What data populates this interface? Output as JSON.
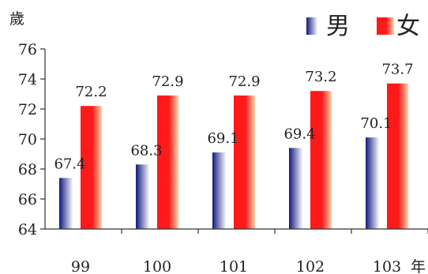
{
  "chart_data": {
    "type": "bar",
    "y_unit": "歲",
    "x_unit": "年",
    "categories": [
      "99",
      "100",
      "101",
      "102",
      "103"
    ],
    "series": [
      {
        "name": "男",
        "values": [
          67.4,
          68.3,
          69.1,
          69.4,
          70.1
        ]
      },
      {
        "name": "女",
        "values": [
          72.2,
          72.9,
          72.9,
          73.2,
          73.7
        ]
      }
    ],
    "ylim": [
      64,
      76
    ],
    "yticks": [
      64,
      66,
      68,
      70,
      72,
      74,
      76
    ],
    "grid": false,
    "legend_position": "top-right"
  },
  "colors": {
    "male_dark": "#101a80",
    "male_light": "#ffffff",
    "female_dark": "#ff1a1a",
    "female_light": "#ffd2a8",
    "axis": "#333333"
  }
}
